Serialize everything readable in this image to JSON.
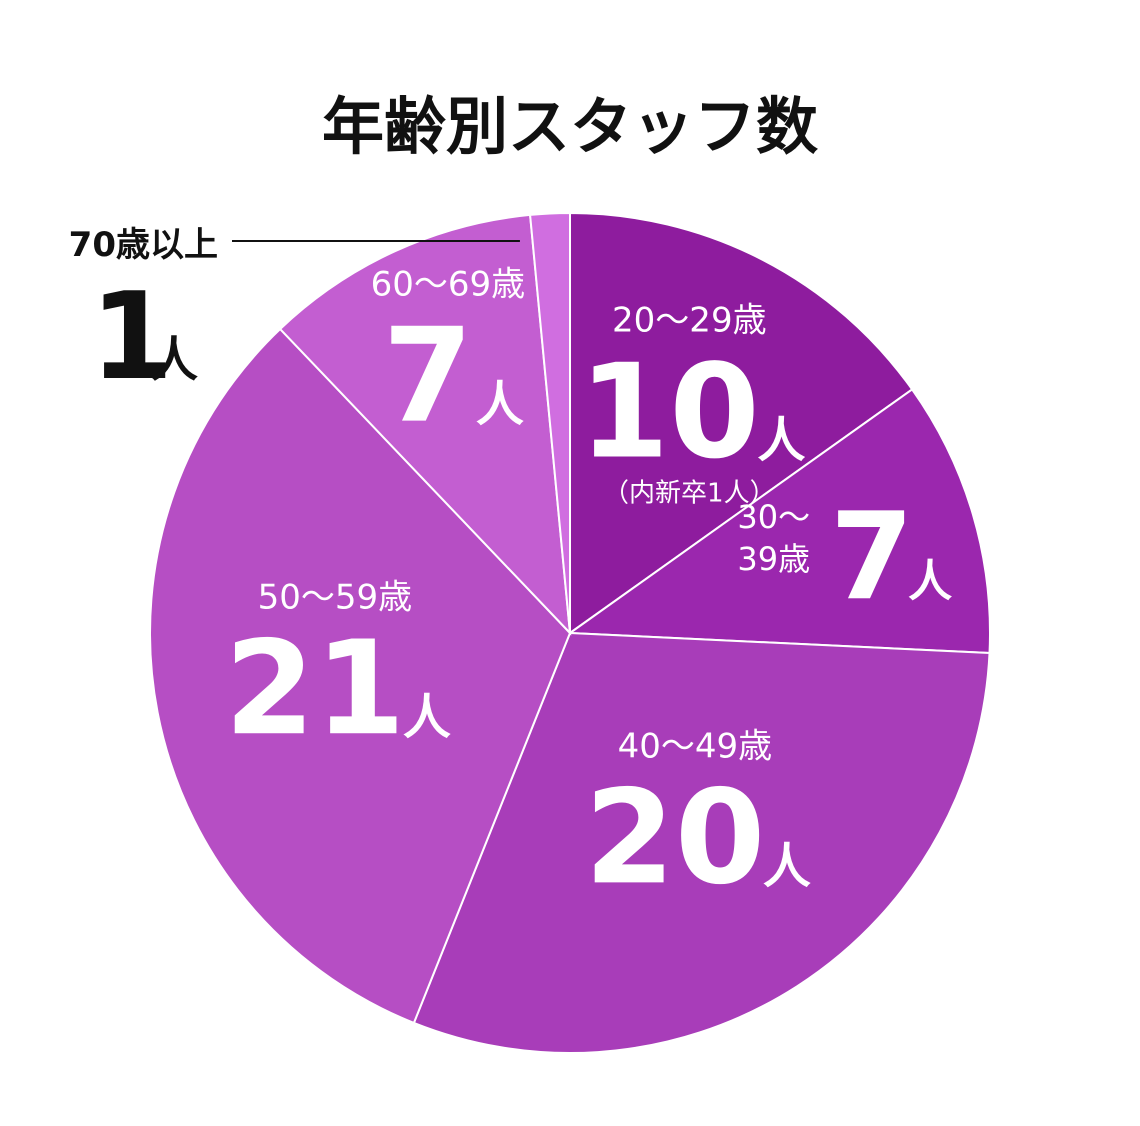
{
  "chart_data": {
    "type": "pie",
    "title": "年齢別スタッフ数",
    "unit": "人",
    "slices": [
      {
        "label": "20〜29歳",
        "value": 10,
        "note": "（内新卒1人）",
        "color": "#8e1c9e"
      },
      {
        "label": "30〜39歳",
        "value": 7,
        "color": "#9b27ae"
      },
      {
        "label": "40〜49歳",
        "value": 20,
        "color": "#a83db9"
      },
      {
        "label": "50〜59歳",
        "value": 21,
        "color": "#b64ec4"
      },
      {
        "label": "60〜69歳",
        "value": 7,
        "color": "#c35ed1"
      },
      {
        "label": "70歳以上",
        "value": 1,
        "color": "#d06ee0"
      }
    ]
  }
}
